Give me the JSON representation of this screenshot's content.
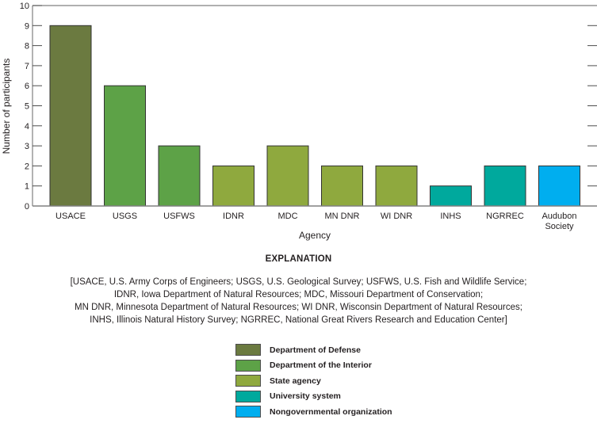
{
  "chart_data": {
    "type": "bar",
    "title": "",
    "xlabel": "Agency",
    "ylabel": "Number of participants",
    "ylim": [
      0,
      10
    ],
    "yticks": [
      0,
      1,
      2,
      3,
      4,
      5,
      6,
      7,
      8,
      9,
      10
    ],
    "grid": false,
    "categories": [
      "USACE",
      "USGS",
      "USFWS",
      "IDNR",
      "MDC",
      "MN DNR",
      "WI DNR",
      "INHS",
      "NGRREC",
      "Audubon Society"
    ],
    "category_lines": [
      [
        "USACE"
      ],
      [
        "USGS"
      ],
      [
        "USFWS"
      ],
      [
        "IDNR"
      ],
      [
        "MDC"
      ],
      [
        "MN DNR"
      ],
      [
        "WI DNR"
      ],
      [
        "INHS"
      ],
      [
        "NGRREC"
      ],
      [
        "Audubon",
        "Society"
      ]
    ],
    "values": [
      9,
      6,
      3,
      2,
      3,
      2,
      2,
      1,
      2,
      2
    ],
    "groups": [
      "Department of Defense",
      "Department of the Interior",
      "Department of the Interior",
      "State agency",
      "State agency",
      "State agency",
      "State agency",
      "University system",
      "University system",
      "Nongovernmental organization"
    ],
    "legend_position": "bottom-center",
    "legend": [
      {
        "label": "Department of Defense",
        "color": "#6b7a40"
      },
      {
        "label": "Department of the Interior",
        "color": "#5da247"
      },
      {
        "label": "State agency",
        "color": "#8fa93e"
      },
      {
        "label": "University system",
        "color": "#00a99d"
      },
      {
        "label": "Nongovernmental organization",
        "color": "#00aeef"
      }
    ]
  },
  "explanation": {
    "title": "EXPLANATION",
    "lines": [
      "[USACE, U.S. Army Corps of Engineers; USGS, U.S. Geological Survey; USFWS, U.S. Fish and Wildlife Service;",
      "IDNR, Iowa Department of Natural Resources; MDC, Missouri Department of Conservation;",
      "MN DNR, Minnesota Department of Natural Resources; WI DNR, Wisconsin Department of Natural Resources;",
      "INHS, Illinois Natural History Survey; NGRREC, National Great Rivers Research and Education Center]"
    ]
  }
}
